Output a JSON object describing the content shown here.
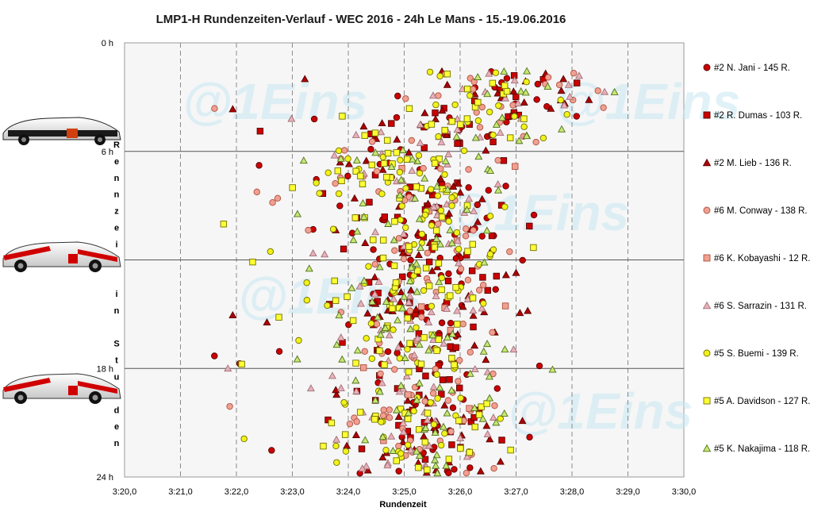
{
  "chart_data": {
    "type": "scatter",
    "title": "LMP1-H  Rundenzeiten-Verlauf  - WEC 2016  - 24h Le Mans  - 15.-19.06.2016",
    "xlabel": "Rundenzeit",
    "ylabel": "Rennzeit in Stunden",
    "x_unit": "minutes",
    "y_unit": "hours",
    "xlim": [
      200,
      210
    ],
    "ylim": [
      0,
      24
    ],
    "y_inverted": true,
    "x_tick_labels": [
      "3:20,0",
      "3:21,0",
      "3:22,0",
      "3:23,0",
      "3:24,0",
      "3:25,0",
      "3:26,0",
      "3:27,0",
      "3:28,0",
      "3:29,0",
      "3:30,0"
    ],
    "y_tick_labels": [
      "0 h",
      "6 h",
      "12 h",
      "18 h",
      "24 h"
    ],
    "grid": "vertical dashed, horizontal solid",
    "legend_position": "right",
    "watermark": "@1Eins",
    "series": [
      {
        "name": "#2 N. Jani - 145 R.",
        "marker": "circle",
        "color": "#cc0000",
        "stroke": "#550000",
        "count": 145
      },
      {
        "name": "#2 R. Dumas - 103 R.",
        "marker": "square",
        "color": "#cc0000",
        "stroke": "#550000",
        "count": 103
      },
      {
        "name": "#2 M. Lieb - 136 R.",
        "marker": "triangle",
        "color": "#b00000",
        "stroke": "#550000",
        "count": 136
      },
      {
        "name": "#6 M. Conway - 138 R.",
        "marker": "circle",
        "color": "#f0a090",
        "stroke": "#b05040",
        "count": 138
      },
      {
        "name": "#6 K. Kobayashi - 12 R.",
        "marker": "square",
        "color": "#f0a090",
        "stroke": "#b05040",
        "count": 12
      },
      {
        "name": "#6 S. Sarrazin - 131 R.",
        "marker": "triangle",
        "color": "#e8b0b8",
        "stroke": "#a07078",
        "count": 131
      },
      {
        "name": "#5 S. Buemi - 139 R.",
        "marker": "circle",
        "color": "#f2f21a",
        "stroke": "#707000",
        "count": 139
      },
      {
        "name": "#5 A. Davidson - 127 R.",
        "marker": "square",
        "color": "#ffff33",
        "stroke": "#707000",
        "count": 127
      },
      {
        "name": "#5 K. Nakajima - 118 R.",
        "marker": "triangle",
        "color": "#c8e870",
        "stroke": "#507020",
        "count": 118
      }
    ]
  }
}
